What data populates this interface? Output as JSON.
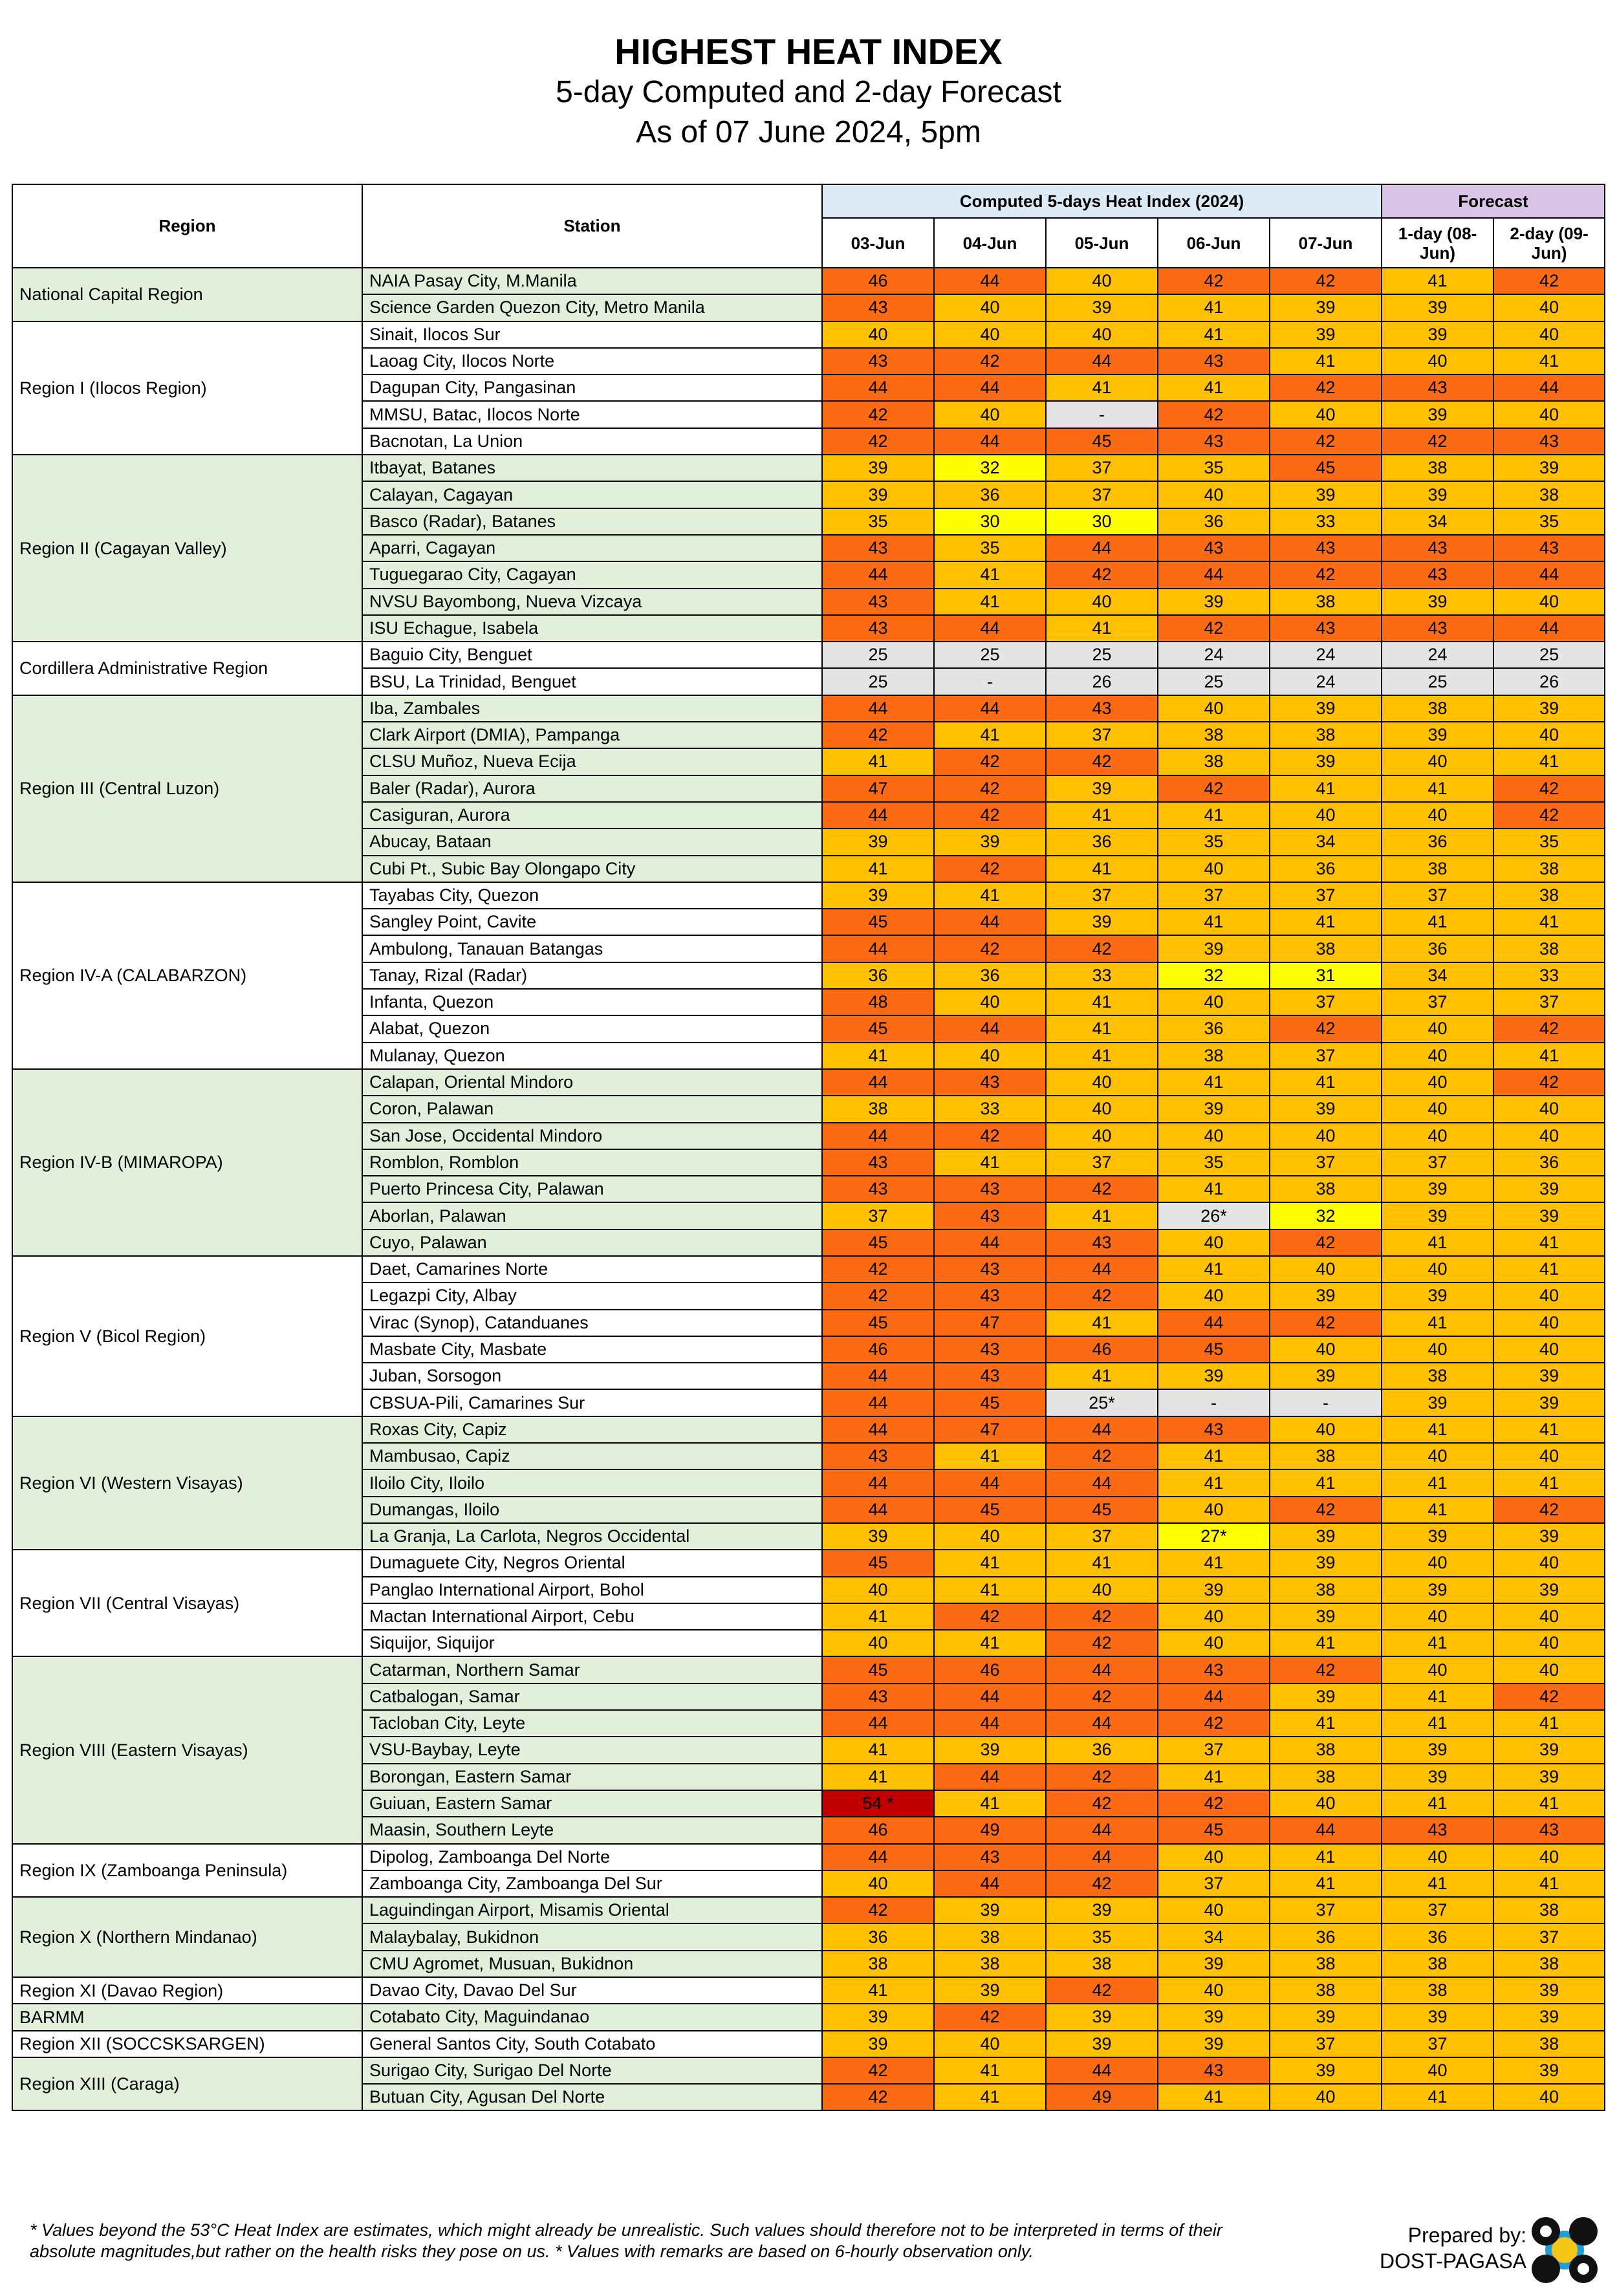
{
  "header": {
    "title": "HIGHEST HEAT INDEX",
    "subtitle": "5-day Computed and 2-day Forecast",
    "as_of": "As of 07 June 2024, 5pm"
  },
  "table": {
    "region_header": "Region",
    "station_header": "Station",
    "computed_header": "Computed 5-days Heat Index (2024)",
    "forecast_header": "Forecast",
    "dates": [
      "03-Jun",
      "04-Jun",
      "05-Jun",
      "06-Jun",
      "07-Jun",
      "1-day (08-Jun)",
      "2-day (09-Jun)"
    ],
    "regions": [
      {
        "name": "National Capital Region",
        "stations": [
          {
            "name": "NAIA Pasay City, M.Manila",
            "values": [
              46,
              44,
              40,
              42,
              42,
              41,
              42
            ]
          },
          {
            "name": "Science Garden Quezon City, Metro Manila",
            "values": [
              43,
              40,
              39,
              41,
              39,
              39,
              40
            ]
          }
        ]
      },
      {
        "name": "Region I (Ilocos Region)",
        "stations": [
          {
            "name": "Sinait, Ilocos Sur",
            "values": [
              40,
              40,
              40,
              41,
              39,
              39,
              40
            ]
          },
          {
            "name": "Laoag City, Ilocos Norte",
            "values": [
              43,
              42,
              44,
              43,
              41,
              40,
              41
            ]
          },
          {
            "name": "Dagupan City, Pangasinan",
            "values": [
              44,
              44,
              41,
              41,
              42,
              43,
              44
            ]
          },
          {
            "name": "MMSU, Batac, Ilocos Norte",
            "values": [
              42,
              40,
              "-",
              42,
              40,
              39,
              40
            ]
          },
          {
            "name": "Bacnotan, La Union",
            "values": [
              42,
              44,
              45,
              43,
              42,
              42,
              43
            ]
          }
        ]
      },
      {
        "name": "Region II (Cagayan Valley)",
        "stations": [
          {
            "name": "Itbayat, Batanes",
            "values": [
              39,
              32,
              37,
              35,
              45,
              38,
              39
            ]
          },
          {
            "name": "Calayan, Cagayan",
            "values": [
              39,
              36,
              37,
              40,
              39,
              39,
              38
            ]
          },
          {
            "name": "Basco (Radar), Batanes",
            "values": [
              35,
              30,
              30,
              36,
              33,
              34,
              35
            ]
          },
          {
            "name": "Aparri, Cagayan",
            "values": [
              43,
              35,
              44,
              43,
              43,
              43,
              43
            ]
          },
          {
            "name": "Tuguegarao City, Cagayan",
            "values": [
              44,
              41,
              42,
              44,
              42,
              43,
              44
            ]
          },
          {
            "name": "NVSU Bayombong, Nueva Vizcaya",
            "values": [
              43,
              41,
              40,
              39,
              38,
              39,
              40
            ]
          },
          {
            "name": "ISU Echague, Isabela",
            "values": [
              43,
              44,
              41,
              42,
              43,
              43,
              44
            ]
          }
        ]
      },
      {
        "name": "Cordillera Administrative Region",
        "stations": [
          {
            "name": "Baguio City, Benguet",
            "values": [
              25,
              25,
              25,
              24,
              24,
              24,
              25
            ]
          },
          {
            "name": "BSU, La Trinidad, Benguet",
            "values": [
              25,
              "-",
              26,
              25,
              24,
              25,
              26
            ]
          }
        ]
      },
      {
        "name": "Region III (Central Luzon)",
        "stations": [
          {
            "name": "Iba, Zambales",
            "values": [
              44,
              44,
              43,
              40,
              39,
              38,
              39
            ]
          },
          {
            "name": "Clark Airport (DMIA), Pampanga",
            "values": [
              42,
              41,
              37,
              38,
              38,
              39,
              40
            ]
          },
          {
            "name": "CLSU Muñoz, Nueva Ecija",
            "values": [
              41,
              42,
              42,
              38,
              39,
              40,
              41
            ]
          },
          {
            "name": "Baler (Radar), Aurora",
            "values": [
              47,
              42,
              39,
              42,
              41,
              41,
              42
            ]
          },
          {
            "name": "Casiguran, Aurora",
            "values": [
              44,
              42,
              41,
              41,
              40,
              40,
              42
            ]
          },
          {
            "name": "Abucay, Bataan",
            "values": [
              39,
              39,
              36,
              35,
              34,
              36,
              35
            ]
          },
          {
            "name": "Cubi Pt., Subic Bay Olongapo City",
            "values": [
              41,
              42,
              41,
              40,
              36,
              38,
              38
            ]
          }
        ]
      },
      {
        "name": "Region IV-A (CALABARZON)",
        "stations": [
          {
            "name": "Tayabas City, Quezon",
            "values": [
              39,
              41,
              37,
              37,
              37,
              37,
              38
            ]
          },
          {
            "name": "Sangley Point, Cavite",
            "values": [
              45,
              44,
              39,
              41,
              41,
              41,
              41
            ]
          },
          {
            "name": "Ambulong, Tanauan Batangas",
            "values": [
              44,
              42,
              42,
              39,
              38,
              36,
              38
            ]
          },
          {
            "name": "Tanay, Rizal (Radar)",
            "values": [
              36,
              36,
              33,
              32,
              31,
              34,
              33
            ]
          },
          {
            "name": "Infanta, Quezon",
            "values": [
              48,
              40,
              41,
              40,
              37,
              37,
              37
            ]
          },
          {
            "name": "Alabat, Quezon",
            "values": [
              45,
              44,
              41,
              36,
              42,
              40,
              42
            ]
          },
          {
            "name": "Mulanay, Quezon",
            "values": [
              41,
              40,
              41,
              38,
              37,
              40,
              41
            ]
          }
        ]
      },
      {
        "name": "Region IV-B (MIMAROPA)",
        "stations": [
          {
            "name": "Calapan, Oriental Mindoro",
            "values": [
              44,
              43,
              40,
              41,
              41,
              40,
              42
            ]
          },
          {
            "name": "Coron, Palawan",
            "values": [
              38,
              33,
              40,
              39,
              39,
              40,
              40
            ]
          },
          {
            "name": "San Jose, Occidental Mindoro",
            "values": [
              44,
              42,
              40,
              40,
              40,
              40,
              40
            ]
          },
          {
            "name": "Romblon, Romblon",
            "values": [
              43,
              41,
              37,
              35,
              37,
              37,
              36
            ]
          },
          {
            "name": "Puerto Princesa City, Palawan",
            "values": [
              43,
              43,
              42,
              41,
              38,
              39,
              39
            ]
          },
          {
            "name": "Aborlan, Palawan",
            "values": [
              37,
              43,
              41,
              "26*",
              32,
              39,
              39
            ]
          },
          {
            "name": "Cuyo, Palawan",
            "values": [
              45,
              44,
              43,
              40,
              42,
              41,
              41
            ]
          }
        ]
      },
      {
        "name": "Region V (Bicol Region)",
        "stations": [
          {
            "name": "Daet, Camarines Norte",
            "values": [
              42,
              43,
              44,
              41,
              40,
              40,
              41
            ]
          },
          {
            "name": "Legazpi City, Albay",
            "values": [
              42,
              43,
              42,
              40,
              39,
              39,
              40
            ]
          },
          {
            "name": "Virac (Synop), Catanduanes",
            "values": [
              45,
              47,
              41,
              44,
              42,
              41,
              40
            ]
          },
          {
            "name": "Masbate City, Masbate",
            "values": [
              46,
              43,
              46,
              45,
              40,
              40,
              40
            ]
          },
          {
            "name": "Juban, Sorsogon",
            "values": [
              44,
              43,
              41,
              39,
              39,
              38,
              39
            ]
          },
          {
            "name": "CBSUA-Pili, Camarines Sur",
            "values": [
              44,
              45,
              "25*",
              "-",
              "-",
              39,
              39
            ]
          }
        ]
      },
      {
        "name": "Region VI (Western Visayas)",
        "stations": [
          {
            "name": "Roxas City, Capiz",
            "values": [
              44,
              47,
              44,
              43,
              40,
              41,
              41
            ]
          },
          {
            "name": "Mambusao, Capiz",
            "values": [
              43,
              41,
              42,
              41,
              38,
              40,
              40
            ]
          },
          {
            "name": "Iloilo City, Iloilo",
            "values": [
              44,
              44,
              44,
              41,
              41,
              41,
              41
            ]
          },
          {
            "name": "Dumangas, Iloilo",
            "values": [
              44,
              45,
              45,
              40,
              42,
              41,
              42
            ]
          },
          {
            "name": "La Granja, La Carlota, Negros Occidental",
            "values": [
              39,
              40,
              37,
              "27*",
              39,
              39,
              39
            ]
          }
        ]
      },
      {
        "name": "Region VII (Central Visayas)",
        "stations": [
          {
            "name": "Dumaguete City, Negros Oriental",
            "values": [
              45,
              41,
              41,
              41,
              39,
              40,
              40
            ]
          },
          {
            "name": "Panglao International Airport, Bohol",
            "values": [
              40,
              41,
              40,
              39,
              38,
              39,
              39
            ]
          },
          {
            "name": "Mactan International Airport, Cebu",
            "values": [
              41,
              42,
              42,
              40,
              39,
              40,
              40
            ]
          },
          {
            "name": "Siquijor, Siquijor",
            "values": [
              40,
              41,
              42,
              40,
              41,
              41,
              40
            ]
          }
        ]
      },
      {
        "name": "Region VIII (Eastern Visayas)",
        "stations": [
          {
            "name": "Catarman, Northern Samar",
            "values": [
              45,
              46,
              44,
              43,
              42,
              40,
              40
            ]
          },
          {
            "name": "Catbalogan, Samar",
            "values": [
              43,
              44,
              42,
              44,
              39,
              41,
              42
            ]
          },
          {
            "name": "Tacloban City, Leyte",
            "values": [
              44,
              44,
              44,
              42,
              41,
              41,
              41
            ]
          },
          {
            "name": "VSU-Baybay, Leyte",
            "values": [
              41,
              39,
              36,
              37,
              38,
              39,
              39
            ]
          },
          {
            "name": "Borongan, Eastern Samar",
            "values": [
              41,
              44,
              42,
              41,
              38,
              39,
              39
            ]
          },
          {
            "name": "Guiuan, Eastern Samar",
            "values": [
              "54 *",
              41,
              42,
              42,
              40,
              41,
              41
            ]
          },
          {
            "name": "Maasin, Southern Leyte",
            "values": [
              46,
              49,
              44,
              45,
              44,
              43,
              43
            ]
          }
        ]
      },
      {
        "name": "Region IX (Zamboanga Peninsula)",
        "stations": [
          {
            "name": "Dipolog, Zamboanga Del Norte",
            "values": [
              44,
              43,
              44,
              40,
              41,
              40,
              40
            ]
          },
          {
            "name": "Zamboanga City, Zamboanga Del Sur",
            "values": [
              40,
              44,
              42,
              37,
              41,
              41,
              41
            ]
          }
        ]
      },
      {
        "name": "Region X (Northern Mindanao)",
        "stations": [
          {
            "name": "Laguindingan Airport, Misamis Oriental",
            "values": [
              42,
              39,
              39,
              40,
              37,
              37,
              38
            ]
          },
          {
            "name": "Malaybalay, Bukidnon",
            "values": [
              36,
              38,
              35,
              34,
              36,
              36,
              37
            ]
          },
          {
            "name": "CMU Agromet, Musuan, Bukidnon",
            "values": [
              38,
              38,
              38,
              39,
              38,
              38,
              38
            ]
          }
        ]
      },
      {
        "name": "Region XI (Davao Region)",
        "stations": [
          {
            "name": "Davao City, Davao Del Sur",
            "values": [
              41,
              39,
              42,
              40,
              38,
              38,
              39
            ]
          }
        ]
      },
      {
        "name": "BARMM",
        "stations": [
          {
            "name": "Cotabato City, Maguindanao",
            "values": [
              39,
              42,
              39,
              39,
              39,
              39,
              39
            ]
          }
        ]
      },
      {
        "name": "Region XII (SOCCSKSARGEN)",
        "stations": [
          {
            "name": "General Santos City, South Cotabato",
            "values": [
              39,
              40,
              39,
              39,
              37,
              37,
              38
            ]
          }
        ]
      },
      {
        "name": "Region XIII (Caraga)",
        "stations": [
          {
            "name": "Surigao City, Surigao Del Norte",
            "values": [
              42,
              41,
              44,
              43,
              39,
              40,
              39
            ]
          },
          {
            "name": "Butuan City, Agusan Del Norte",
            "values": [
              42,
              41,
              49,
              41,
              40,
              41,
              40
            ]
          }
        ]
      }
    ]
  },
  "footer": {
    "note": "* Values beyond the 53°C Heat Index are estimates, which might already be unrealistic. Such values should therefore not to be interpreted in terms of their absolute magnitudes,but rather on the health risks they pose on us. * Values with remarks are based on 6-hourly observation only.",
    "prepared_by": "Prepared by:",
    "agency": "DOST-PAGASA"
  }
}
